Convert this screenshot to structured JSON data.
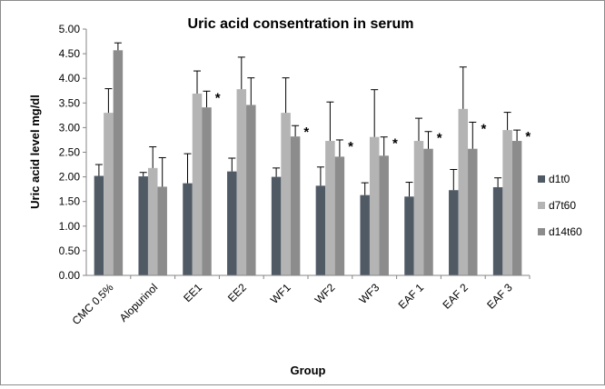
{
  "chart_data": {
    "type": "bar",
    "title": "Uric acid consentration in serum",
    "xlabel": "Group",
    "ylabel": "Uric acid level mg/dl",
    "ylim": [
      0,
      5
    ],
    "yticks": [
      "0.00",
      "0.50",
      "1.00",
      "1.50",
      "2.00",
      "2.50",
      "3.00",
      "3.50",
      "4.00",
      "4.50",
      "5.00"
    ],
    "grid": false,
    "legend_position": "right",
    "categories": [
      "CMC 0.5%",
      "Alopurinol",
      "EE1",
      "EE2",
      "WF1",
      "WF2",
      "WF3",
      "EAF 1",
      "EAF 2",
      "EAF 3"
    ],
    "series": [
      {
        "name": "d1t0",
        "color": "#505a65",
        "values": [
          2.02,
          2.01,
          1.87,
          2.11,
          2.0,
          1.82,
          1.63,
          1.6,
          1.73,
          1.79
        ],
        "errors": [
          0.23,
          0.08,
          0.6,
          0.27,
          0.18,
          0.38,
          0.25,
          0.29,
          0.42,
          0.19
        ]
      },
      {
        "name": "d7t60",
        "color": "#b4b4b4",
        "values": [
          3.3,
          2.18,
          3.69,
          3.78,
          3.3,
          2.73,
          2.81,
          2.73,
          3.38,
          2.95
        ],
        "errors": [
          0.49,
          0.43,
          0.46,
          0.65,
          0.71,
          0.79,
          0.96,
          0.46,
          0.85,
          0.36
        ]
      },
      {
        "name": "d14t60",
        "color": "#8c8c8c",
        "values": [
          4.57,
          1.8,
          3.41,
          3.46,
          2.82,
          2.41,
          2.43,
          2.57,
          2.57,
          2.73
        ],
        "errors": [
          0.15,
          0.59,
          0.33,
          0.55,
          0.22,
          0.34,
          0.38,
          0.35,
          0.54,
          0.22
        ]
      }
    ],
    "annotations": [
      {
        "category": "EE1",
        "text": "*"
      },
      {
        "category": "WF1",
        "text": "*"
      },
      {
        "category": "WF2",
        "text": "*"
      },
      {
        "category": "WF3",
        "text": "*"
      },
      {
        "category": "EAF 1",
        "text": "*"
      },
      {
        "category": "EAF 2",
        "text": "*"
      },
      {
        "category": "EAF 3",
        "text": "*"
      }
    ]
  }
}
